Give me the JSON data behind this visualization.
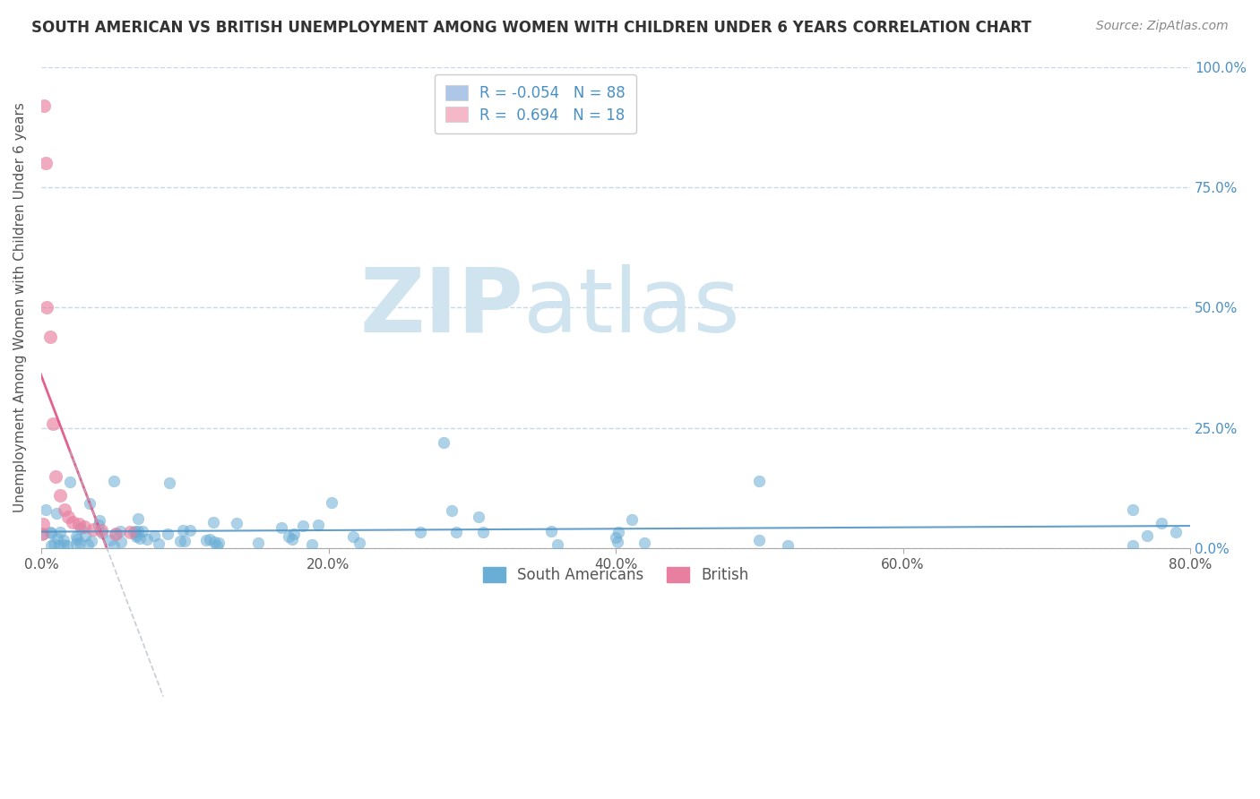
{
  "title": "SOUTH AMERICAN VS BRITISH UNEMPLOYMENT AMONG WOMEN WITH CHILDREN UNDER 6 YEARS CORRELATION CHART",
  "source": "Source: ZipAtlas.com",
  "xlabel_ticks": [
    "0.0%",
    "20.0%",
    "40.0%",
    "60.0%",
    "80.0%"
  ],
  "xlabel_vals": [
    0.0,
    0.2,
    0.4,
    0.6,
    0.8
  ],
  "ylabel": "Unemployment Among Women with Children Under 6 years",
  "ylabel_right_ticks": [
    "100.0%",
    "75.0%",
    "50.0%",
    "25.0%",
    "0.0%"
  ],
  "ylabel_right_vals": [
    1.0,
    0.75,
    0.5,
    0.25,
    0.0
  ],
  "ylim": [
    0.0,
    1.0
  ],
  "xlim": [
    0.0,
    0.8
  ],
  "legend_top": [
    {
      "label": "R = -0.054   N = 88",
      "color": "#aec6e8"
    },
    {
      "label": "R =  0.694   N = 18",
      "color": "#f4b8c8"
    }
  ],
  "legend_bottom": [
    {
      "label": "South Americans",
      "color": "#6aadd5"
    },
    {
      "label": "British",
      "color": "#e87fa0"
    }
  ],
  "watermark_zip": "ZIP",
  "watermark_atlas": "atlas",
  "south_american_color": "#6aadd5",
  "british_color": "#e87fa0",
  "south_american_trendline_color": "#4a90c4",
  "british_trendline_color": "#e05080",
  "background_color": "#ffffff",
  "grid_color": "#c8d8e8",
  "title_fontsize": 12,
  "source_fontsize": 10,
  "axis_label_fontsize": 11,
  "tick_fontsize": 11,
  "legend_fontsize": 12,
  "watermark_color": "#d0e4f0",
  "watermark_fontsize": 72
}
